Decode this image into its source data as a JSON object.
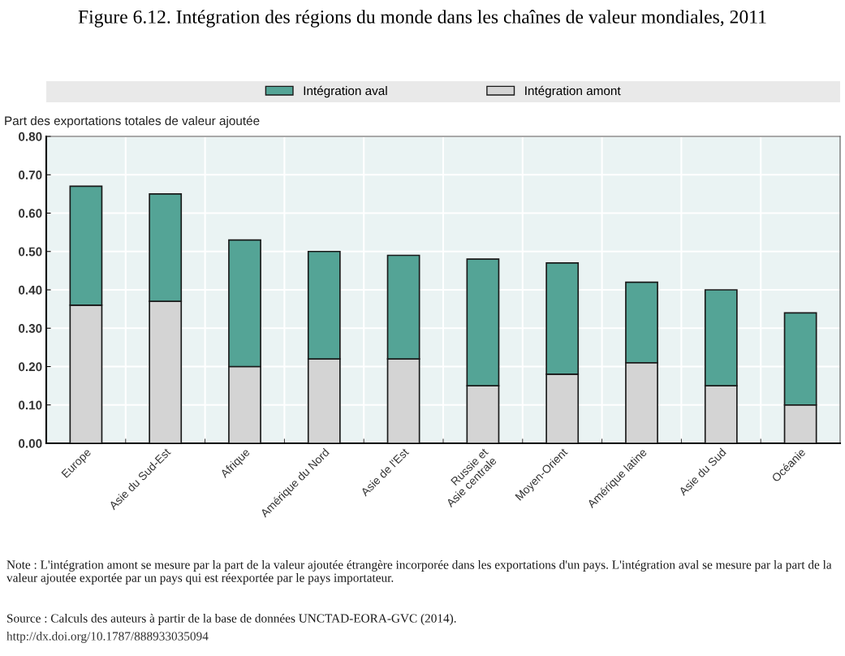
{
  "chart_data": {
    "type": "bar",
    "stacked": true,
    "title": "Figure 6.12. Intégration des régions du monde dans les chaînes de valeur mondiales, 2011",
    "ylabel": "Part des exportations totales de valeur ajoutée",
    "categories": [
      "Europe",
      "Asie du Sud-Est",
      "Afrique",
      "Amérique du Nord",
      "Asie de l'Est",
      "Russie et\nAsie centrale",
      "Moyen-Orient",
      "Amérique latine",
      "Asie du Sud",
      "Océanie"
    ],
    "series": [
      {
        "name": "Intégration amont",
        "color": "#d4d4d4",
        "values": [
          0.36,
          0.37,
          0.2,
          0.22,
          0.22,
          0.15,
          0.18,
          0.21,
          0.15,
          0.1
        ]
      },
      {
        "name": "Intégration aval",
        "color": "#54a496",
        "values": [
          0.31,
          0.28,
          0.33,
          0.28,
          0.27,
          0.33,
          0.29,
          0.21,
          0.25,
          0.24
        ]
      }
    ],
    "ylim": [
      0,
      0.8
    ],
    "yticks": [
      {
        "value": 0,
        "label": "0.00"
      },
      {
        "value": 0.1,
        "label": "0.10"
      },
      {
        "value": 0.2,
        "label": "0.20"
      },
      {
        "value": 0.3,
        "label": "0.30"
      },
      {
        "value": 0.4,
        "label": "0.40"
      },
      {
        "value": 0.5,
        "label": "0.50"
      },
      {
        "value": 0.6,
        "label": "0.60"
      },
      {
        "value": 0.7,
        "label": "0.70"
      },
      {
        "value": 0.8,
        "label": "0.80"
      }
    ],
    "grid": true,
    "legend": "top",
    "annotations": [
      "Note : L'intégration amont se mesure par la part de la valeur ajoutée étrangère incorporée dans les exportations d'un pays. L'intégration aval se mesure par la part de la valeur ajoutée exportée par un pays qui est réexportée par le pays importateur.",
      "Source : Calculs des auteurs à partir de la base de données UNCTAD-EORA-GVC (2014).",
      "http://dx.doi.org/10.1787/888933035094"
    ]
  }
}
